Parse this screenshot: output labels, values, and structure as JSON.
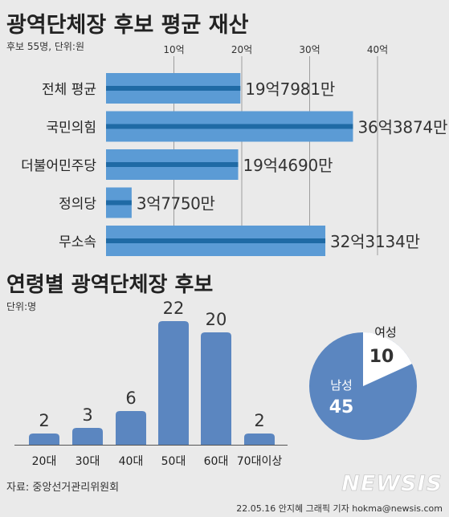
{
  "chart_data": [
    {
      "type": "bar",
      "orientation": "horizontal",
      "title": "광역단체장 후보 평균 재산",
      "subtitle": "후보 55명, 단위:원",
      "categories": [
        "전체 평균",
        "국민의힘",
        "더불어민주당",
        "정의당",
        "무소속"
      ],
      "values": [
        19.7981,
        36.3874,
        19.469,
        3.775,
        32.3134
      ],
      "value_labels": [
        "19억7981만",
        "36억3874만",
        "19억4690만",
        "3억7750만",
        "32억3134만"
      ],
      "xticks": [
        10,
        20,
        30,
        40
      ],
      "xtick_labels": [
        "10억",
        "20억",
        "30억",
        "40억"
      ],
      "xlim": [
        0,
        40
      ],
      "grid": true,
      "bar_color": "#5b9bd5",
      "bar_stripe_color": "#1f6aa5"
    },
    {
      "type": "bar",
      "title": "연령별 광역단체장 후보",
      "subtitle": "단위:명",
      "categories": [
        "20대",
        "30대",
        "40대",
        "50대",
        "60대",
        "70대이상"
      ],
      "values": [
        2,
        3,
        6,
        22,
        20,
        2
      ],
      "ylim": [
        0,
        22
      ],
      "bar_color": "#5b86c0"
    },
    {
      "type": "pie",
      "labels": [
        "남성",
        "여성"
      ],
      "values": [
        45,
        10
      ],
      "colors": [
        "#5b86c0",
        "#ffffff"
      ]
    }
  ],
  "footer": {
    "source": "자료: 중앙선거관리위원회",
    "credit": "22.05.16 안지혜 그래픽 기자  hokma@newsis.com",
    "logo": "NEWSIS"
  }
}
